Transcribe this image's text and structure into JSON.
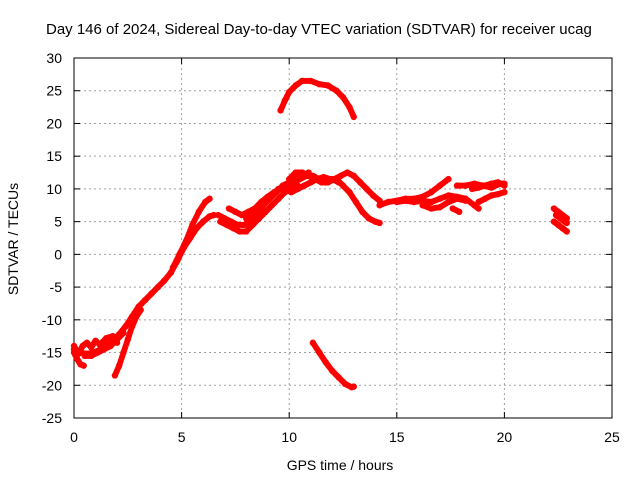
{
  "chart_data": {
    "type": "scatter",
    "title": "Day 146 of 2024, Sidereal Day-to-day VTEC variation (SDTVAR) for receiver ucag",
    "xlabel": "GPS time / hours",
    "ylabel": "SDTVAR / TECUs",
    "xlim": [
      0,
      25
    ],
    "ylim": [
      -25,
      30
    ],
    "x_ticks": [
      0,
      5,
      10,
      15,
      20,
      25
    ],
    "y_ticks": [
      -25,
      -20,
      -15,
      -10,
      -5,
      0,
      5,
      10,
      15,
      20,
      25,
      30
    ],
    "grid": true,
    "legend": "none",
    "marker_color": "#ff0000",
    "series": [
      {
        "name": "early-low-a",
        "points": [
          [
            0.0,
            -14.5
          ],
          [
            0.3,
            -15.0
          ],
          [
            0.6,
            -15.2
          ],
          [
            0.9,
            -15.0
          ],
          [
            1.2,
            -14.6
          ],
          [
            1.5,
            -14.0
          ],
          [
            1.8,
            -13.2
          ],
          [
            2.1,
            -12.2
          ],
          [
            2.4,
            -11.0
          ],
          [
            2.7,
            -9.5
          ],
          [
            3.0,
            -8.0
          ],
          [
            3.3,
            -7.0
          ],
          [
            3.6,
            -6.0
          ],
          [
            3.9,
            -5.0
          ],
          [
            4.2,
            -4.0
          ],
          [
            4.5,
            -2.8
          ],
          [
            4.8,
            -1.0
          ],
          [
            5.1,
            1.0
          ],
          [
            5.4,
            2.5
          ],
          [
            5.7,
            4.0
          ],
          [
            6.0,
            5.0
          ],
          [
            6.3,
            5.8
          ],
          [
            6.5,
            6.0
          ]
        ]
      },
      {
        "name": "early-low-b",
        "points": [
          [
            0.0,
            -14.0
          ],
          [
            0.2,
            -15.2
          ],
          [
            0.4,
            -14.0
          ],
          [
            0.6,
            -13.5
          ],
          [
            0.8,
            -14.2
          ],
          [
            1.0,
            -13.2
          ],
          [
            1.2,
            -13.8
          ],
          [
            1.5,
            -12.8
          ],
          [
            1.8,
            -12.5
          ],
          [
            2.0,
            -13.5
          ]
        ]
      },
      {
        "name": "early-low-c",
        "points": [
          [
            0.0,
            -15.0
          ],
          [
            0.15,
            -16.0
          ],
          [
            0.3,
            -16.8
          ],
          [
            0.45,
            -17.0
          ]
        ]
      },
      {
        "name": "early-low-d",
        "points": [
          [
            1.9,
            -18.5
          ],
          [
            2.1,
            -17.0
          ],
          [
            2.3,
            -15.0
          ],
          [
            2.5,
            -13.0
          ],
          [
            2.7,
            -11.0
          ],
          [
            2.9,
            -9.5
          ],
          [
            3.1,
            -8.5
          ]
        ]
      },
      {
        "name": "early-low-e",
        "points": [
          [
            0.5,
            -15.5
          ],
          [
            0.8,
            -15.5
          ],
          [
            1.1,
            -15.0
          ],
          [
            1.4,
            -14.5
          ],
          [
            1.7,
            -14.0
          ],
          [
            2.0,
            -13.0
          ],
          [
            2.3,
            -12.0
          ]
        ]
      },
      {
        "name": "rise-to-peak",
        "points": [
          [
            4.6,
            -2.0
          ],
          [
            4.9,
            0.0
          ],
          [
            5.2,
            2.0
          ],
          [
            5.5,
            4.5
          ],
          [
            5.8,
            6.5
          ],
          [
            6.1,
            8.0
          ],
          [
            6.3,
            8.5
          ]
        ]
      },
      {
        "name": "mid-a",
        "points": [
          [
            6.7,
            6.0
          ],
          [
            7.0,
            5.5
          ],
          [
            7.3,
            5.0
          ],
          [
            7.6,
            4.5
          ],
          [
            7.9,
            4.5
          ],
          [
            8.2,
            5.0
          ],
          [
            8.5,
            6.0
          ],
          [
            8.8,
            7.5
          ],
          [
            9.1,
            8.5
          ],
          [
            9.4,
            9.5
          ],
          [
            9.7,
            10.5
          ],
          [
            10.0,
            11.0
          ],
          [
            10.3,
            11.5
          ],
          [
            10.6,
            12.0
          ],
          [
            10.9,
            12.5
          ]
        ]
      },
      {
        "name": "mid-b",
        "points": [
          [
            6.8,
            5.0
          ],
          [
            7.1,
            4.5
          ],
          [
            7.4,
            4.0
          ],
          [
            7.7,
            3.5
          ],
          [
            8.0,
            3.5
          ],
          [
            8.3,
            4.5
          ],
          [
            8.6,
            5.5
          ],
          [
            8.9,
            6.5
          ],
          [
            9.2,
            7.5
          ],
          [
            9.5,
            8.5
          ],
          [
            9.8,
            9.5
          ],
          [
            10.1,
            10.0
          ],
          [
            10.4,
            10.5
          ]
        ]
      },
      {
        "name": "mid-c",
        "points": [
          [
            7.2,
            7.0
          ],
          [
            7.5,
            6.5
          ],
          [
            7.8,
            6.0
          ],
          [
            8.1,
            6.5
          ],
          [
            8.4,
            7.0
          ],
          [
            8.7,
            8.0
          ],
          [
            9.0,
            8.8
          ],
          [
            9.3,
            9.5
          ],
          [
            9.6,
            10.0
          ],
          [
            9.9,
            10.5
          ],
          [
            10.2,
            11.0
          ],
          [
            10.5,
            11.5
          ],
          [
            10.8,
            12.0
          ],
          [
            11.1,
            12.0
          ],
          [
            11.4,
            11.5
          ],
          [
            11.7,
            11.0
          ],
          [
            12.0,
            11.5
          ],
          [
            12.3,
            11.0
          ]
        ]
      },
      {
        "name": "mid-d",
        "points": [
          [
            8.0,
            5.5
          ],
          [
            8.3,
            6.0
          ],
          [
            8.6,
            7.0
          ],
          [
            8.9,
            8.0
          ],
          [
            9.2,
            9.0
          ],
          [
            9.5,
            10.0
          ],
          [
            9.8,
            10.0
          ],
          [
            10.1,
            9.5
          ],
          [
            10.4,
            10.0
          ],
          [
            10.7,
            10.5
          ],
          [
            11.0,
            11.0
          ],
          [
            11.3,
            11.5
          ],
          [
            11.6,
            11.8
          ],
          [
            11.9,
            11.5
          ]
        ]
      },
      {
        "name": "mid-e",
        "points": [
          [
            10.0,
            11.5
          ],
          [
            10.3,
            12.5
          ],
          [
            10.6,
            12.5
          ],
          [
            10.9,
            12.0
          ],
          [
            11.2,
            11.5
          ],
          [
            11.5,
            11.0
          ],
          [
            11.8,
            11.0
          ],
          [
            12.1,
            11.5
          ],
          [
            12.4,
            12.0
          ],
          [
            12.7,
            12.5
          ],
          [
            13.0,
            12.0
          ],
          [
            13.3,
            11.0
          ],
          [
            13.6,
            10.0
          ],
          [
            13.9,
            9.0
          ],
          [
            14.2,
            8.2
          ]
        ]
      },
      {
        "name": "mid-f",
        "points": [
          [
            12.2,
            11.5
          ],
          [
            12.5,
            10.5
          ],
          [
            12.8,
            9.5
          ],
          [
            13.1,
            8.0
          ],
          [
            13.4,
            6.5
          ],
          [
            13.7,
            5.5
          ],
          [
            14.0,
            5.0
          ],
          [
            14.2,
            4.8
          ]
        ]
      },
      {
        "name": "late-a",
        "points": [
          [
            14.2,
            7.5
          ],
          [
            14.6,
            8.0
          ],
          [
            15.0,
            8.2
          ],
          [
            15.4,
            8.5
          ],
          [
            15.8,
            8.5
          ],
          [
            16.2,
            8.8
          ],
          [
            16.6,
            9.5
          ],
          [
            17.0,
            10.5
          ],
          [
            17.4,
            11.5
          ]
        ]
      },
      {
        "name": "late-b",
        "points": [
          [
            15.0,
            8.0
          ],
          [
            15.4,
            8.2
          ],
          [
            15.8,
            8.0
          ],
          [
            16.2,
            8.2
          ],
          [
            16.6,
            8.0
          ],
          [
            17.0,
            8.5
          ],
          [
            17.4,
            9.0
          ],
          [
            17.8,
            8.8
          ],
          [
            18.2,
            8.5
          ],
          [
            18.6,
            7.5
          ],
          [
            18.8,
            7.0
          ]
        ]
      },
      {
        "name": "late-c",
        "points": [
          [
            16.2,
            7.5
          ],
          [
            16.6,
            7.0
          ],
          [
            17.0,
            7.2
          ],
          [
            17.4,
            8.0
          ],
          [
            17.8,
            8.5
          ],
          [
            18.2,
            8.2
          ]
        ]
      },
      {
        "name": "late-d",
        "points": [
          [
            17.6,
            7.0
          ],
          [
            17.9,
            6.5
          ]
        ]
      },
      {
        "name": "late-e",
        "points": [
          [
            17.8,
            10.5
          ],
          [
            18.2,
            10.5
          ],
          [
            18.6,
            10.8
          ],
          [
            19.0,
            10.5
          ],
          [
            19.4,
            10.2
          ],
          [
            19.8,
            10.8
          ],
          [
            20.0,
            10.8
          ]
        ]
      },
      {
        "name": "late-f",
        "points": [
          [
            18.8,
            8.0
          ],
          [
            19.1,
            8.5
          ],
          [
            19.4,
            9.0
          ],
          [
            19.7,
            9.2
          ],
          [
            20.0,
            9.5
          ]
        ]
      },
      {
        "name": "late-g",
        "points": [
          [
            18.5,
            10.0
          ],
          [
            18.8,
            10.2
          ],
          [
            19.1,
            10.5
          ],
          [
            19.4,
            10.8
          ],
          [
            19.7,
            11.0
          ],
          [
            20.0,
            10.5
          ]
        ]
      },
      {
        "name": "tail-a",
        "points": [
          [
            22.3,
            7.0
          ],
          [
            22.5,
            6.5
          ],
          [
            22.7,
            6.0
          ],
          [
            22.9,
            5.5
          ]
        ]
      },
      {
        "name": "tail-b",
        "points": [
          [
            22.3,
            5.0
          ],
          [
            22.5,
            4.5
          ],
          [
            22.7,
            4.0
          ],
          [
            22.9,
            3.5
          ]
        ]
      },
      {
        "name": "tail-c",
        "points": [
          [
            22.4,
            6.0
          ],
          [
            22.6,
            5.5
          ],
          [
            22.8,
            5.0
          ],
          [
            22.9,
            4.8
          ]
        ]
      },
      {
        "name": "high-arc",
        "points": [
          [
            9.6,
            22.0
          ],
          [
            9.8,
            23.5
          ],
          [
            10.0,
            24.8
          ],
          [
            10.3,
            25.8
          ],
          [
            10.6,
            26.5
          ],
          [
            11.0,
            26.5
          ],
          [
            11.4,
            26.0
          ],
          [
            11.8,
            25.8
          ],
          [
            12.2,
            25.0
          ],
          [
            12.5,
            24.0
          ],
          [
            12.8,
            22.5
          ],
          [
            13.0,
            21.0
          ]
        ]
      },
      {
        "name": "low-branch",
        "points": [
          [
            11.1,
            -13.5
          ],
          [
            11.4,
            -15.0
          ],
          [
            11.7,
            -16.5
          ],
          [
            12.0,
            -17.8
          ],
          [
            12.3,
            -18.8
          ],
          [
            12.6,
            -19.8
          ],
          [
            12.9,
            -20.3
          ],
          [
            13.0,
            -20.2
          ]
        ]
      }
    ]
  }
}
